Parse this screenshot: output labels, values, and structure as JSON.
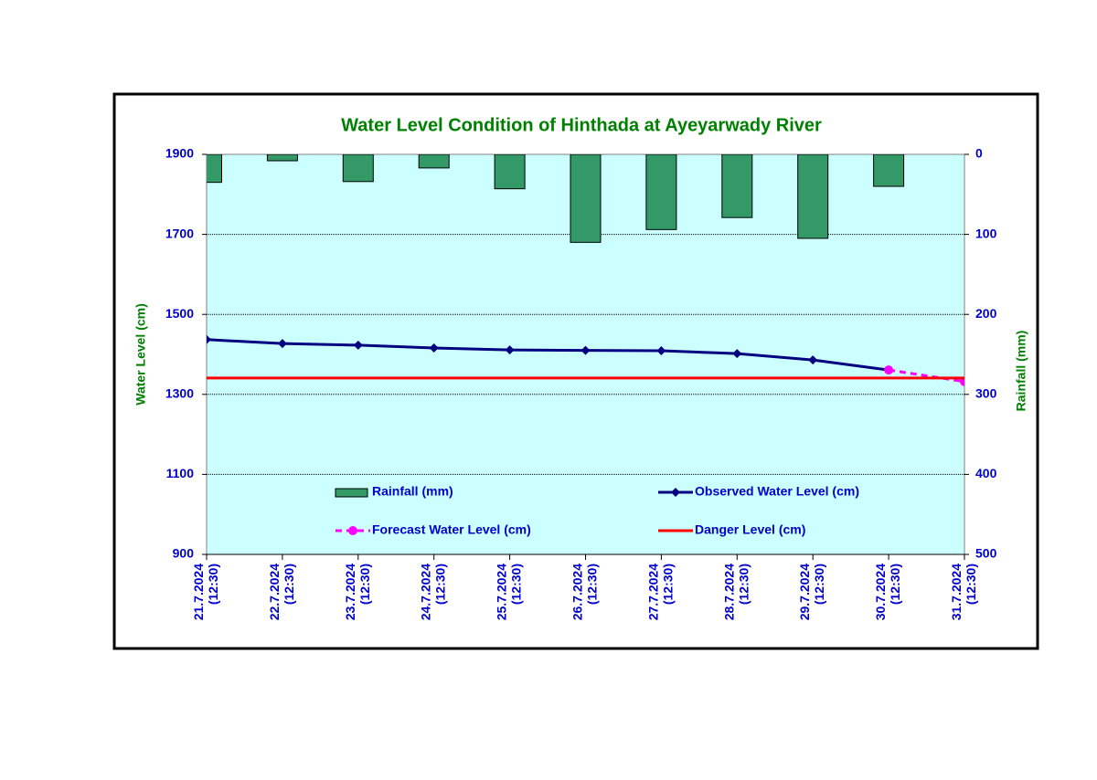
{
  "chart_data": {
    "type": "combo",
    "title": "Water Level Condition of Hinthada at Ayeyarwady River",
    "y_label": "Water Level (cm)",
    "y2_label": "Rainfall (mm)",
    "categories": [
      "21.7.2024 (12:30)",
      "22.7.2024 (12:30)",
      "23.7.2024 (12:30)",
      "24.7.2024 (12:30)",
      "25.7.2024 (12:30)",
      "26.7.2024 (12:30)",
      "27.7.2024 (12:30)",
      "28.7.2024 (12:30)",
      "29.7.2024 (12:30)",
      "30.7.2024 (12:30)",
      "31.7.2024 (12:30)"
    ],
    "ylim": [
      900,
      1900
    ],
    "yticks": [
      900,
      1100,
      1300,
      1500,
      1700,
      1900
    ],
    "y2lim": [
      500,
      0
    ],
    "y2ticks": [
      0,
      100,
      200,
      300,
      400,
      500
    ],
    "grid": true,
    "background": "#ccffff",
    "series": [
      {
        "name": "Rainfall (mm)",
        "type": "bar",
        "axis": "y2",
        "color": "#339966",
        "values": [
          35,
          8,
          34,
          17,
          43,
          110,
          94,
          79,
          105,
          40,
          null
        ]
      },
      {
        "name": "Observed Water Level (cm)",
        "type": "line",
        "marker": "diamond",
        "color": "#000080",
        "values": [
          1437,
          1427,
          1423,
          1416,
          1411,
          1410,
          1409,
          1402,
          1386,
          1361,
          null
        ]
      },
      {
        "name": "Forecast Water Level (cm)",
        "type": "line",
        "marker": "circle",
        "dashed": true,
        "color": "#ff00ff",
        "values": [
          null,
          null,
          null,
          null,
          null,
          null,
          null,
          null,
          null,
          1361,
          1332
        ]
      },
      {
        "name": "Danger Level (cm)",
        "type": "line",
        "color": "#ff0000",
        "values": [
          1341,
          1341,
          1341,
          1341,
          1341,
          1341,
          1341,
          1341,
          1341,
          1341,
          1341
        ]
      }
    ]
  }
}
